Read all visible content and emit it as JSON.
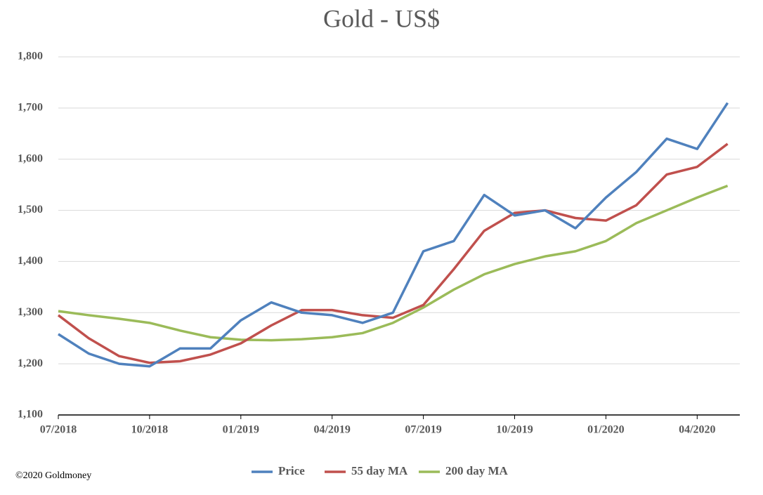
{
  "chart_data": {
    "type": "line",
    "title": "Gold - US$",
    "x": [
      "07/2018",
      "08/2018",
      "09/2018",
      "10/2018",
      "11/2018",
      "12/2018",
      "01/2019",
      "02/2019",
      "03/2019",
      "04/2019",
      "05/2019",
      "06/2019",
      "07/2019",
      "08/2019",
      "09/2019",
      "10/2019",
      "11/2019",
      "12/2019",
      "01/2020",
      "02/2020",
      "03/2020",
      "04/2020",
      "05/2020"
    ],
    "series": [
      {
        "name": "Price",
        "color": "#4f81bd",
        "values": [
          1258,
          1220,
          1200,
          1195,
          1230,
          1230,
          1285,
          1320,
          1300,
          1295,
          1280,
          1300,
          1420,
          1440,
          1530,
          1490,
          1500,
          1465,
          1525,
          1575,
          1640,
          1620,
          1710
        ]
      },
      {
        "name": "55 day MA",
        "color": "#c0504d",
        "values": [
          1295,
          1250,
          1215,
          1202,
          1205,
          1218,
          1240,
          1275,
          1305,
          1305,
          1295,
          1290,
          1315,
          1385,
          1460,
          1495,
          1500,
          1485,
          1480,
          1510,
          1570,
          1585,
          1630
        ]
      },
      {
        "name": "200 day MA",
        "color": "#9bbb59",
        "values": [
          1303,
          1295,
          1288,
          1280,
          1265,
          1252,
          1247,
          1246,
          1248,
          1252,
          1260,
          1280,
          1310,
          1345,
          1375,
          1395,
          1410,
          1420,
          1440,
          1475,
          1500,
          1525,
          1548
        ]
      }
    ],
    "xticks": [
      "07/2018",
      "10/2018",
      "01/2019",
      "04/2019",
      "07/2019",
      "10/2019",
      "01/2020",
      "04/2020"
    ],
    "ylim": [
      1100,
      1800
    ],
    "yticks": [
      {
        "value": 1100,
        "label": "1,100"
      },
      {
        "value": 1200,
        "label": "1,200"
      },
      {
        "value": 1300,
        "label": "1,300"
      },
      {
        "value": 1400,
        "label": "1,400"
      },
      {
        "value": 1500,
        "label": "1,500"
      },
      {
        "value": 1600,
        "label": "1,600"
      },
      {
        "value": 1700,
        "label": "1,700"
      },
      {
        "value": 1800,
        "label": "1,800"
      }
    ],
    "grid": true,
    "legend": "bottom",
    "source": "©2020 Goldmoney"
  }
}
